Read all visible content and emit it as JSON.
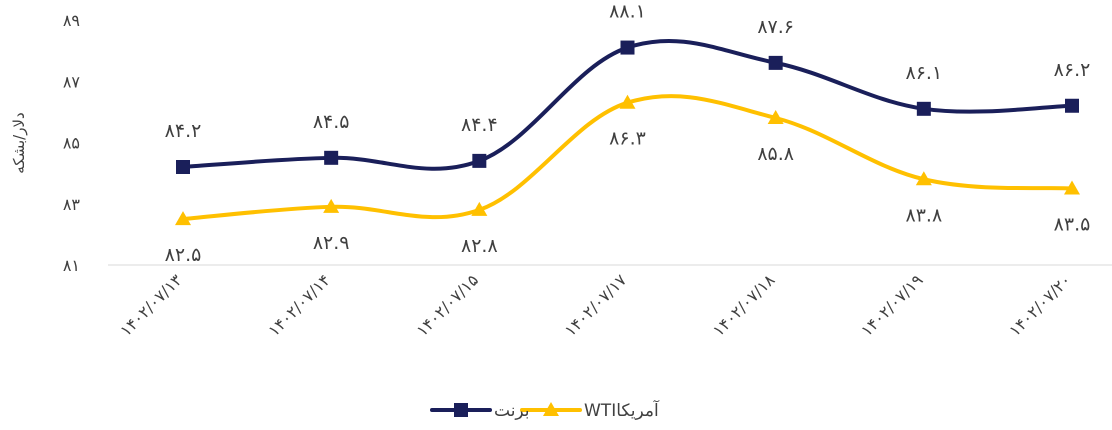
{
  "chart_data": {
    "type": "line",
    "title": "",
    "xlabel": "",
    "ylabel": "دلار/بشکه",
    "ylim": [
      81,
      89
    ],
    "y_ticks": [
      "۸۱",
      "۸۳",
      "۸۵",
      "۸۷",
      "۸۹"
    ],
    "categories": [
      "۱۴۰۲/۰۷/۱۳",
      "۱۴۰۲/۰۷/۱۴",
      "۱۴۰۲/۰۷/۱۵",
      "۱۴۰۲/۰۷/۱۷",
      "۱۴۰۲/۰۷/۱۸",
      "۱۴۰۲/۰۷/۱۹",
      "۱۴۰۲/۰۷/۲۰"
    ],
    "grid": false,
    "legend_position": "bottom",
    "series": [
      {
        "name": "برنت",
        "color": "#1a1f5a",
        "marker": "square",
        "values": [
          84.2,
          84.5,
          84.4,
          88.1,
          87.6,
          86.1,
          86.2
        ],
        "labels": [
          "۸۴.۲",
          "۸۴.۵",
          "۸۴.۴",
          "۸۸.۱",
          "۸۷.۶",
          "۸۶.۱",
          "۸۶.۲"
        ],
        "label_positions": [
          "above",
          "above",
          "above",
          "above",
          "above",
          "above",
          "above"
        ]
      },
      {
        "name": "WTIآمریکا",
        "color": "#ffc000",
        "marker": "triangle",
        "values": [
          82.5,
          82.9,
          82.8,
          86.3,
          85.8,
          83.8,
          83.5
        ],
        "labels": [
          "۸۲.۵",
          "۸۲.۹",
          "۸۲.۸",
          "۸۶.۳",
          "۸۵.۸",
          "۸۳.۸",
          "۸۳.۵"
        ],
        "label_positions": [
          "below",
          "below",
          "below",
          "below",
          "below",
          "below",
          "below"
        ]
      }
    ]
  }
}
